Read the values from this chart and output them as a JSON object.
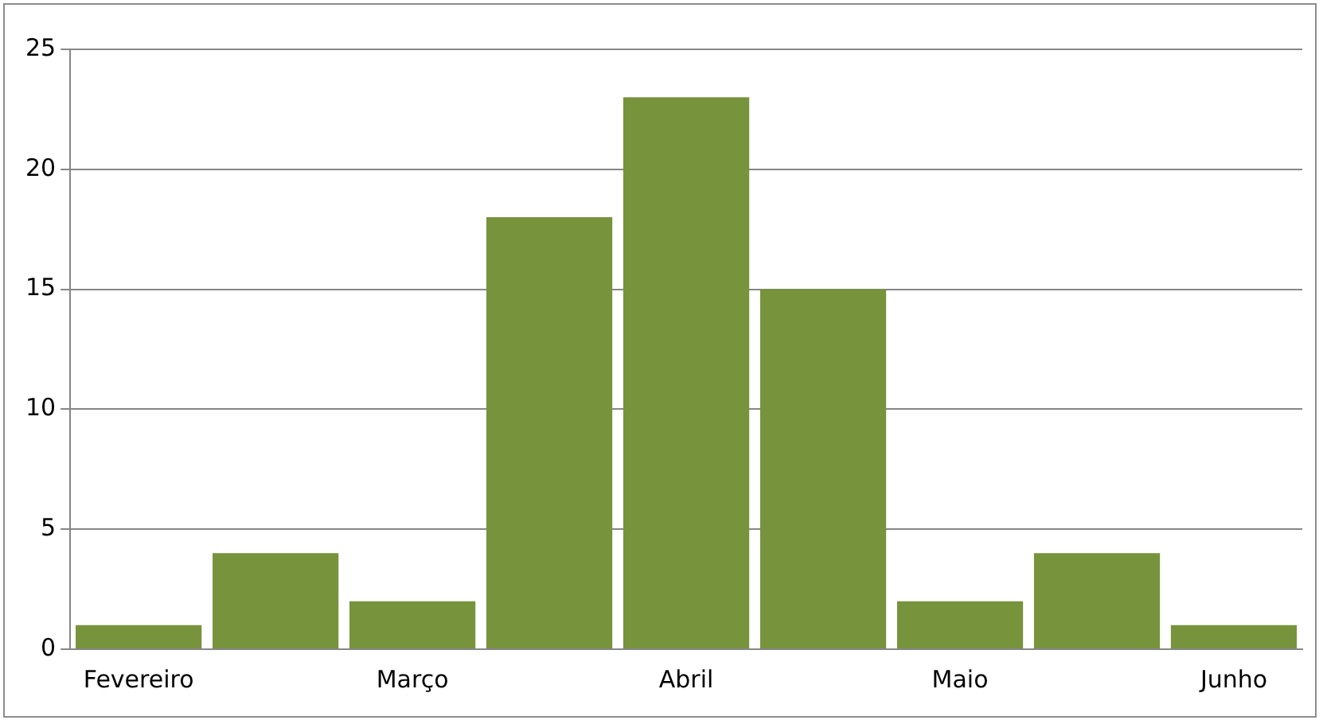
{
  "chart_data": {
    "type": "bar",
    "categories": [
      "Fevereiro",
      null,
      "Março",
      null,
      "Abril",
      null,
      "Maio",
      null,
      "Junho"
    ],
    "values": [
      1,
      4,
      2,
      18,
      23,
      15,
      2,
      4,
      1
    ],
    "color": "#77933c",
    "ylim": [
      0,
      25
    ],
    "yticks": [
      0,
      5,
      10,
      15,
      20,
      25
    ],
    "grid": "y",
    "legend": false
  }
}
